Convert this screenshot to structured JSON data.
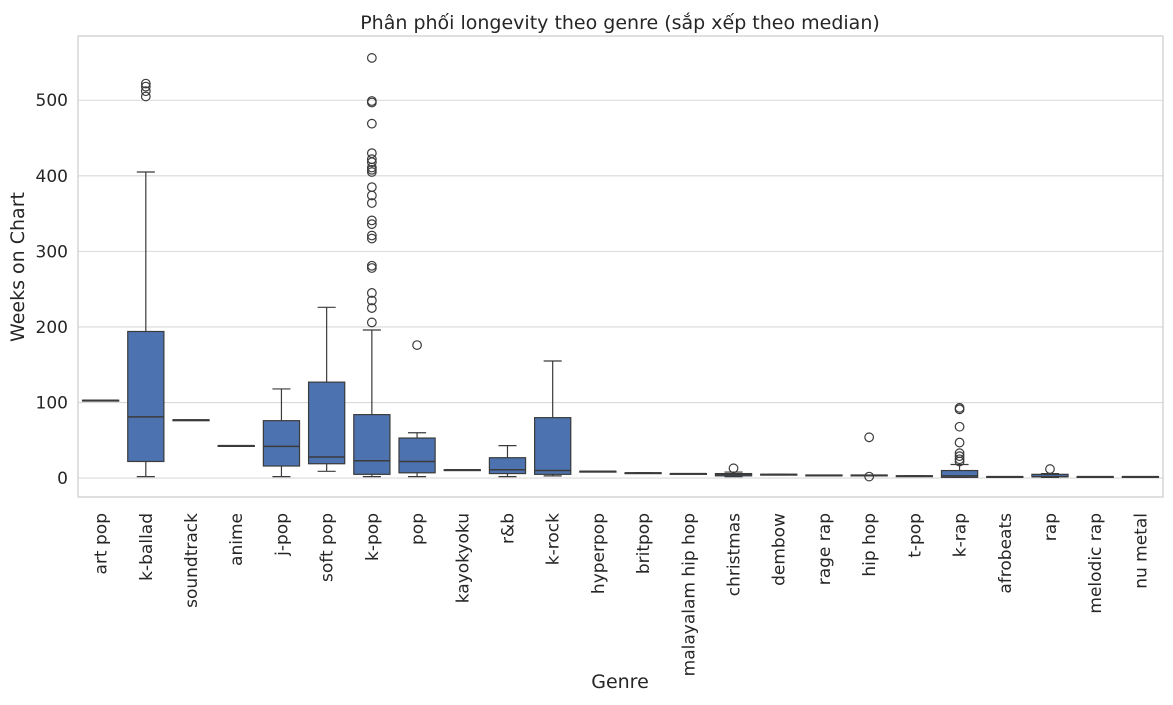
{
  "chart_data": {
    "type": "box",
    "title": "Phân phối longevity theo genre (sắp xếp theo median)",
    "xlabel": "Genre",
    "ylabel": "Weeks on Chart",
    "ylim": [
      -25,
      585
    ],
    "yticks": [
      0,
      100,
      200,
      300,
      400,
      500
    ],
    "grid": "horizontal",
    "box_color": "#4c72b0",
    "line_color": "#3b3b3b",
    "categories": [
      {
        "name": "art pop",
        "whisker_low": 103,
        "q1": 103,
        "median": 103,
        "q3": 103,
        "whisker_high": 103,
        "outliers": []
      },
      {
        "name": "k-ballad",
        "whisker_low": 2,
        "q1": 22,
        "median": 81,
        "q3": 194,
        "whisker_high": 405,
        "outliers": [
          505,
          512,
          518,
          522
        ]
      },
      {
        "name": "soundtrack",
        "whisker_low": 77,
        "q1": 77,
        "median": 77,
        "q3": 77,
        "whisker_high": 77,
        "outliers": []
      },
      {
        "name": "anime",
        "whisker_low": 43,
        "q1": 43,
        "median": 43,
        "q3": 43,
        "whisker_high": 43,
        "outliers": []
      },
      {
        "name": "j-pop",
        "whisker_low": 2,
        "q1": 16,
        "median": 42,
        "q3": 76,
        "whisker_high": 118,
        "outliers": []
      },
      {
        "name": "soft pop",
        "whisker_low": 9,
        "q1": 19,
        "median": 28,
        "q3": 127,
        "whisker_high": 226,
        "outliers": []
      },
      {
        "name": "k-pop",
        "whisker_low": 2,
        "q1": 5,
        "median": 23,
        "q3": 84,
        "whisker_high": 196,
        "outliers": [
          206,
          225,
          235,
          245,
          278,
          281,
          317,
          321,
          336,
          341,
          364,
          374,
          385,
          405,
          408,
          411,
          418,
          422,
          430,
          469,
          497,
          499,
          556
        ]
      },
      {
        "name": "pop",
        "whisker_low": 2,
        "q1": 7,
        "median": 22,
        "q3": 53,
        "whisker_high": 60,
        "outliers": [
          176
        ]
      },
      {
        "name": "kayokyoku",
        "whisker_low": 11,
        "q1": 11,
        "median": 11,
        "q3": 11,
        "whisker_high": 11,
        "outliers": []
      },
      {
        "name": "r&b",
        "whisker_low": 2,
        "q1": 6,
        "median": 11,
        "q3": 27,
        "whisker_high": 43,
        "outliers": []
      },
      {
        "name": "k-rock",
        "whisker_low": 3,
        "q1": 5,
        "median": 10,
        "q3": 80,
        "whisker_high": 155,
        "outliers": []
      },
      {
        "name": "hyperpop",
        "whisker_low": 9,
        "q1": 9,
        "median": 9,
        "q3": 9,
        "whisker_high": 9,
        "outliers": []
      },
      {
        "name": "britpop",
        "whisker_low": 7,
        "q1": 7,
        "median": 7,
        "q3": 7,
        "whisker_high": 7,
        "outliers": []
      },
      {
        "name": "malayalam hip hop",
        "whisker_low": 6,
        "q1": 6,
        "median": 6,
        "q3": 6,
        "whisker_high": 6,
        "outliers": []
      },
      {
        "name": "christmas",
        "whisker_low": 2,
        "q1": 3,
        "median": 5,
        "q3": 6,
        "whisker_high": 8,
        "outliers": [
          13
        ]
      },
      {
        "name": "dembow",
        "whisker_low": 5,
        "q1": 5,
        "median": 5,
        "q3": 5,
        "whisker_high": 5,
        "outliers": []
      },
      {
        "name": "rage rap",
        "whisker_low": 4,
        "q1": 4,
        "median": 4,
        "q3": 4,
        "whisker_high": 4,
        "outliers": []
      },
      {
        "name": "hip hop",
        "whisker_low": 3,
        "q1": 3,
        "median": 4,
        "q3": 4,
        "whisker_high": 4,
        "outliers": [
          54,
          2
        ]
      },
      {
        "name": "t-pop",
        "whisker_low": 3,
        "q1": 3,
        "median": 3,
        "q3": 3,
        "whisker_high": 3,
        "outliers": []
      },
      {
        "name": "k-rap",
        "whisker_low": 1,
        "q1": 1,
        "median": 3,
        "q3": 10,
        "whisker_high": 18,
        "outliers": [
          22,
          25,
          29,
          33,
          47,
          68,
          91,
          93
        ]
      },
      {
        "name": "afrobeats",
        "whisker_low": 2,
        "q1": 2,
        "median": 2,
        "q3": 2,
        "whisker_high": 2,
        "outliers": []
      },
      {
        "name": "rap",
        "whisker_low": 1,
        "q1": 2,
        "median": 2,
        "q3": 5,
        "whisker_high": 6,
        "outliers": [
          12
        ]
      },
      {
        "name": "melodic rap",
        "whisker_low": 2,
        "q1": 2,
        "median": 2,
        "q3": 2,
        "whisker_high": 2,
        "outliers": []
      },
      {
        "name": "nu metal",
        "whisker_low": 2,
        "q1": 2,
        "median": 2,
        "q3": 2,
        "whisker_high": 2,
        "outliers": []
      }
    ]
  }
}
